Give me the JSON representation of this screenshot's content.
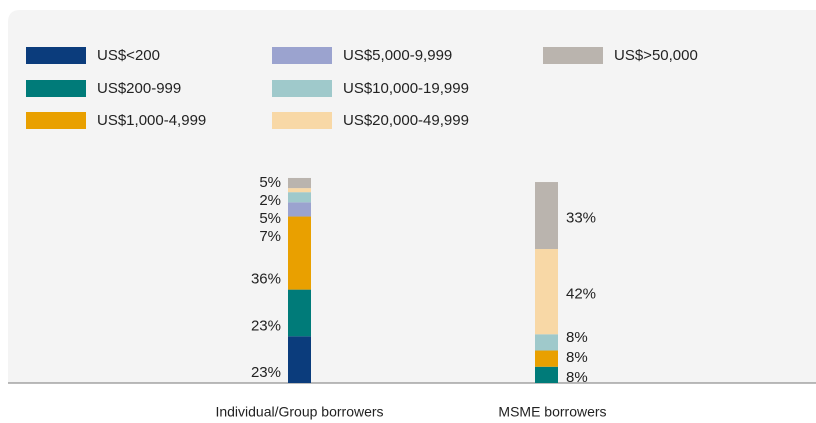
{
  "chart_data": {
    "type": "stacked-bar",
    "categories": [
      "Individual/Group borrowers",
      "MSME borrowers"
    ],
    "series": [
      {
        "name": "US$<200",
        "color": "#0b3c7c",
        "values": [
          23,
          0
        ],
        "value_labels": [
          "23%",
          null
        ]
      },
      {
        "name": "US$200-999",
        "color": "#007b79",
        "values": [
          23,
          8
        ],
        "value_labels": [
          "23%",
          "8%"
        ]
      },
      {
        "name": "US$1,000-4,999",
        "color": "#e9a000",
        "values": [
          36,
          8
        ],
        "value_labels": [
          "36%",
          "8%"
        ]
      },
      {
        "name": "US$5,000-9,999",
        "color": "#9ba3cf",
        "values": [
          7,
          0
        ],
        "value_labels": [
          "7%",
          null
        ]
      },
      {
        "name": "US$10,000-19,999",
        "color": "#9fc9cb",
        "values": [
          5,
          8
        ],
        "value_labels": [
          "5%",
          "8%"
        ]
      },
      {
        "name": "US$20,000-49,999",
        "color": "#f8d8a6",
        "values": [
          2,
          42
        ],
        "value_labels": [
          "2%",
          "42%"
        ]
      },
      {
        "name": "US$>50,000",
        "color": "#bab4ae",
        "values": [
          5,
          33
        ],
        "value_labels": [
          "5%",
          "33%"
        ]
      }
    ]
  }
}
